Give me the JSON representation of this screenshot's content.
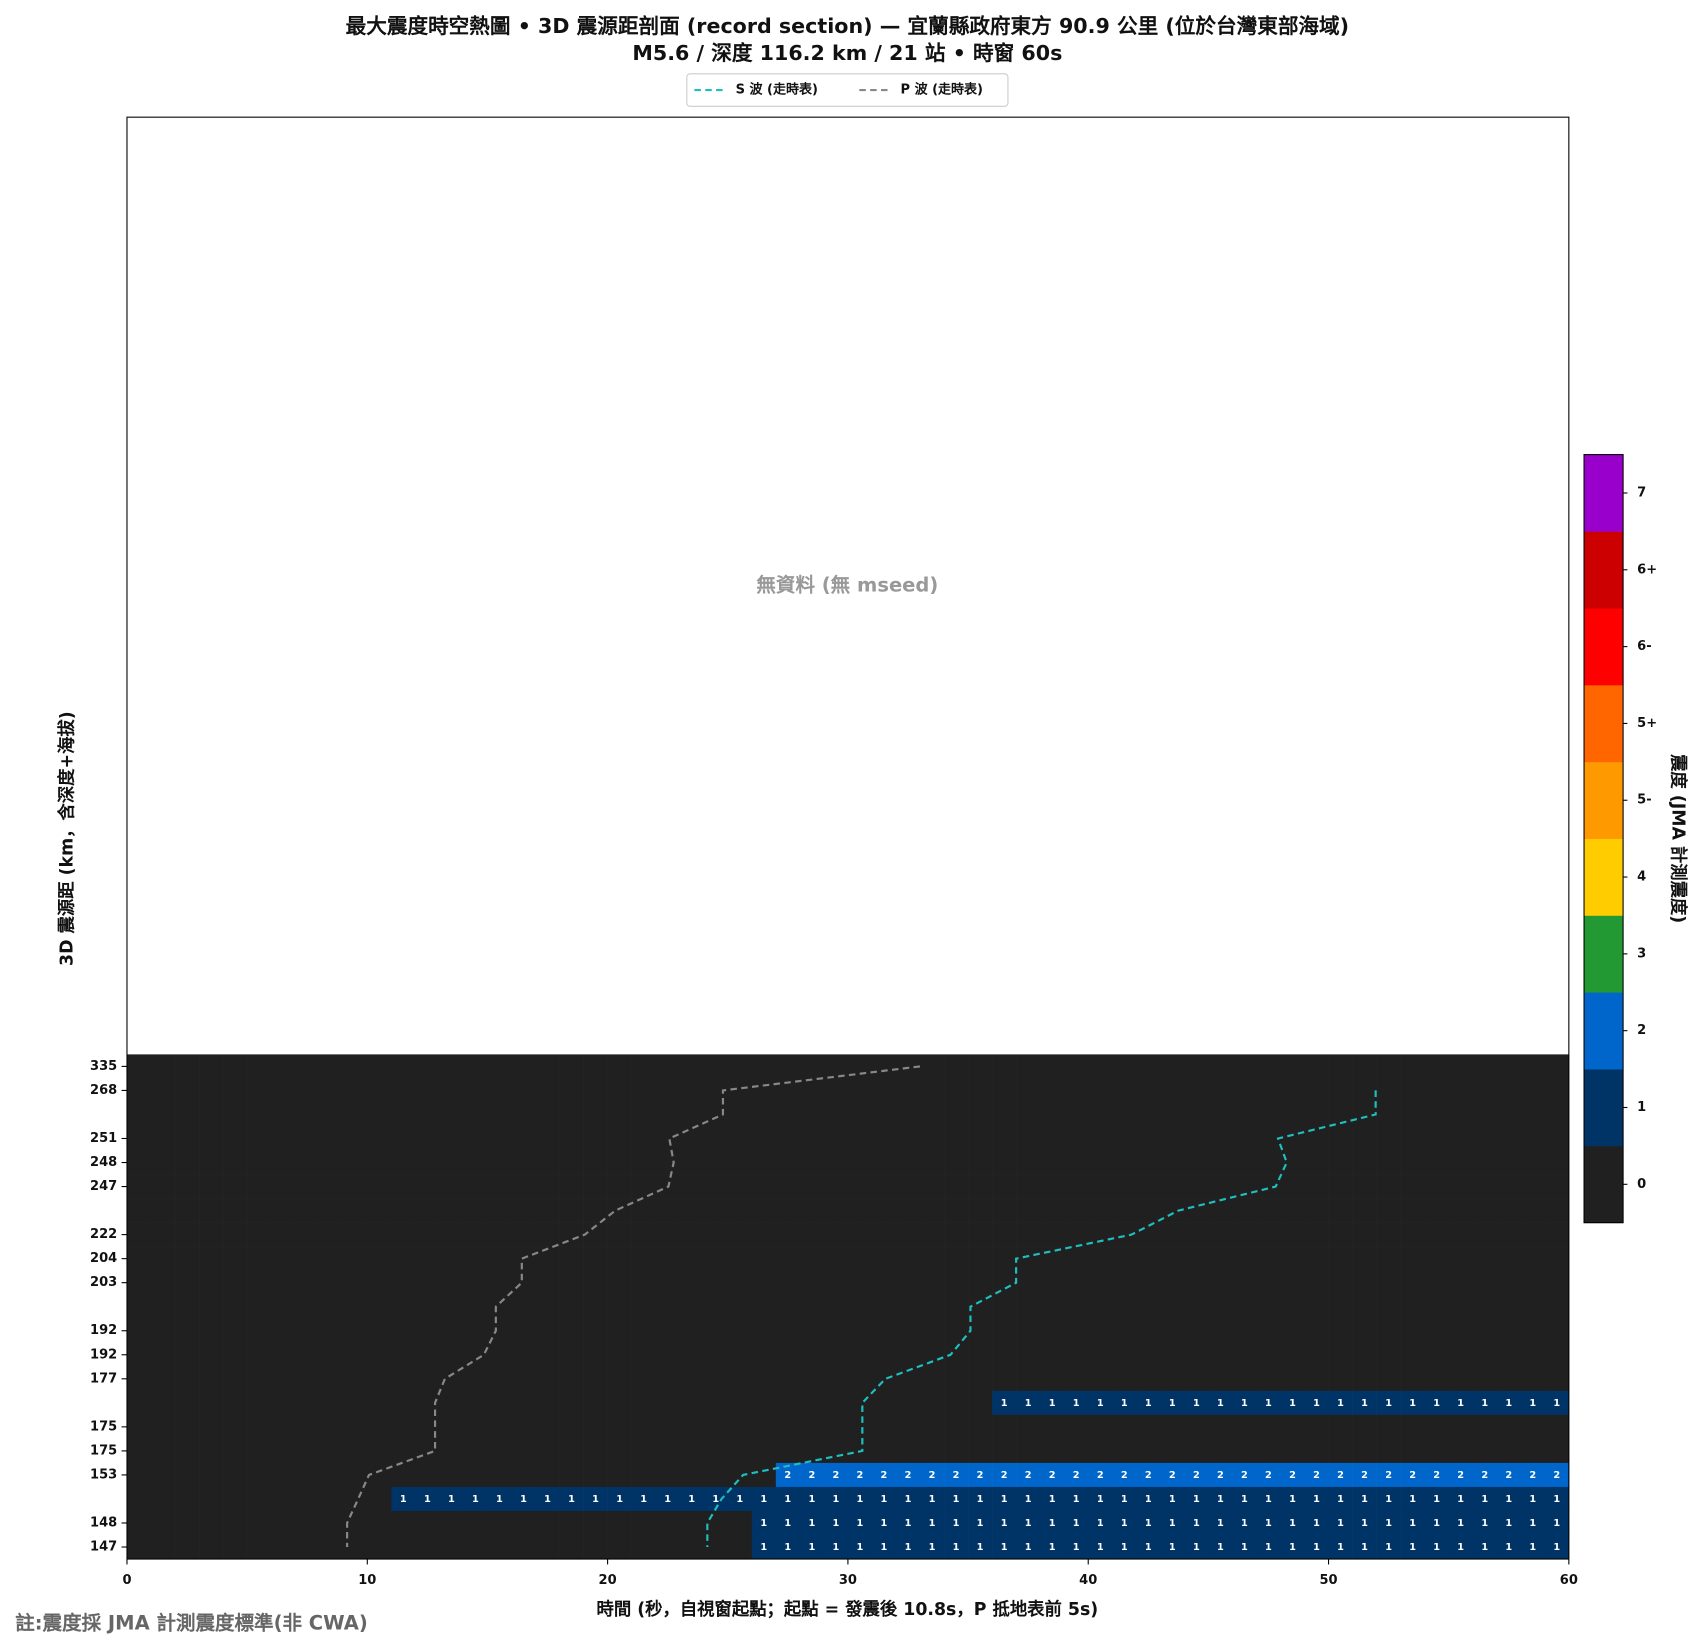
{
  "chart_data": {
    "type": "heatmap",
    "title": "最大震度時空熱圖 • 3D 震源距剖面 (record section) — 宜蘭縣政府東方  90.9  公里 (位於台灣東部海域)",
    "subtitle": "M5.6 / 深度 116.2 km / 21 站 • 時窗 60s",
    "x_label": "時間 (秒，自視窗起點；起點 = 發震後 10.8s，P 抵地表前 5s)",
    "y_label": "3D 震源距 (km，含深度+海拔)",
    "annotation": "無資料 (無 mseed)",
    "footnote": "註:震度採 JMA 計測震度標準(非 CWA)",
    "xlim": [
      0,
      60
    ],
    "xticks": [
      0,
      10,
      20,
      30,
      40,
      50,
      60
    ],
    "categories": [
      "335",
      "268",
      null,
      "251",
      "248",
      "247",
      null,
      "222",
      "204",
      "203",
      null,
      "192",
      "192",
      "177",
      null,
      "175",
      "175",
      "153",
      null,
      "148",
      "147"
    ],
    "time_bins": [
      0,
      1,
      2,
      3,
      4,
      5,
      6,
      7,
      8,
      9,
      10,
      11,
      12,
      13,
      14,
      15,
      16,
      17,
      18,
      19,
      20,
      21,
      22,
      23,
      24,
      25,
      26,
      27,
      28,
      29,
      30,
      31,
      32,
      33,
      34,
      35,
      36,
      37,
      38,
      39,
      40,
      41,
      42,
      43,
      44,
      45,
      46,
      47,
      48,
      49,
      50,
      51,
      52,
      53,
      54,
      55,
      56,
      57,
      58,
      59,
      60
    ],
    "values": [
      [
        0,
        0,
        0,
        0,
        0,
        0,
        0,
        0,
        0,
        0,
        0,
        0,
        0,
        0,
        0,
        0,
        0,
        0,
        0,
        0,
        0,
        0,
        0,
        0,
        0,
        0,
        0,
        0,
        0,
        0,
        0,
        0,
        0,
        0,
        0,
        0,
        0,
        0,
        0,
        0,
        0,
        0,
        0,
        0,
        0,
        0,
        0,
        0,
        0,
        0,
        0,
        0,
        0,
        0,
        0,
        0,
        0,
        0,
        0,
        0
      ],
      [
        0,
        0,
        0,
        0,
        0,
        0,
        0,
        0,
        0,
        0,
        0,
        0,
        0,
        0,
        0,
        0,
        0,
        0,
        0,
        0,
        0,
        0,
        0,
        0,
        0,
        0,
        0,
        0,
        0,
        0,
        0,
        0,
        0,
        0,
        0,
        0,
        0,
        0,
        0,
        0,
        0,
        0,
        0,
        0,
        0,
        0,
        0,
        0,
        0,
        0,
        0,
        0,
        0,
        0,
        0,
        0,
        0,
        0,
        0,
        0
      ],
      [
        0,
        0,
        0,
        0,
        0,
        0,
        0,
        0,
        0,
        0,
        0,
        0,
        0,
        0,
        0,
        0,
        0,
        0,
        0,
        0,
        0,
        0,
        0,
        0,
        0,
        0,
        0,
        0,
        0,
        0,
        0,
        0,
        0,
        0,
        0,
        0,
        0,
        0,
        0,
        0,
        0,
        0,
        0,
        0,
        0,
        0,
        0,
        0,
        0,
        0,
        0,
        0,
        0,
        0,
        0,
        0,
        0,
        0,
        0,
        0
      ],
      [
        0,
        0,
        0,
        0,
        0,
        0,
        0,
        0,
        0,
        0,
        0,
        0,
        0,
        0,
        0,
        0,
        0,
        0,
        0,
        0,
        0,
        0,
        0,
        0,
        0,
        0,
        0,
        0,
        0,
        0,
        0,
        0,
        0,
        0,
        0,
        0,
        0,
        0,
        0,
        0,
        0,
        0,
        0,
        0,
        0,
        0,
        0,
        0,
        0,
        0,
        0,
        0,
        0,
        0,
        0,
        0,
        0,
        0,
        0,
        0
      ],
      [
        0,
        0,
        0,
        0,
        0,
        0,
        0,
        0,
        0,
        0,
        0,
        0,
        0,
        0,
        0,
        0,
        0,
        0,
        0,
        0,
        0,
        0,
        0,
        0,
        0,
        0,
        0,
        0,
        0,
        0,
        0,
        0,
        0,
        0,
        0,
        0,
        0,
        0,
        0,
        0,
        0,
        0,
        0,
        0,
        0,
        0,
        0,
        0,
        0,
        0,
        0,
        0,
        0,
        0,
        0,
        0,
        0,
        0,
        0,
        0
      ],
      [
        0,
        0,
        0,
        0,
        0,
        0,
        0,
        0,
        0,
        0,
        0,
        0,
        0,
        0,
        0,
        0,
        0,
        0,
        0,
        0,
        0,
        0,
        0,
        0,
        0,
        0,
        0,
        0,
        0,
        0,
        0,
        0,
        0,
        0,
        0,
        0,
        0,
        0,
        0,
        0,
        0,
        0,
        0,
        0,
        0,
        0,
        0,
        0,
        0,
        0,
        0,
        0,
        0,
        0,
        0,
        0,
        0,
        0,
        0,
        0
      ],
      [
        0,
        0,
        0,
        0,
        0,
        0,
        0,
        0,
        0,
        0,
        0,
        0,
        0,
        0,
        0,
        0,
        0,
        0,
        0,
        0,
        0,
        0,
        0,
        0,
        0,
        0,
        0,
        0,
        0,
        0,
        0,
        0,
        0,
        0,
        0,
        0,
        0,
        0,
        0,
        0,
        0,
        0,
        0,
        0,
        0,
        0,
        0,
        0,
        0,
        0,
        0,
        0,
        0,
        0,
        0,
        0,
        0,
        0,
        0,
        0
      ],
      [
        0,
        0,
        0,
        0,
        0,
        0,
        0,
        0,
        0,
        0,
        0,
        0,
        0,
        0,
        0,
        0,
        0,
        0,
        0,
        0,
        0,
        0,
        0,
        0,
        0,
        0,
        0,
        0,
        0,
        0,
        0,
        0,
        0,
        0,
        0,
        0,
        0,
        0,
        0,
        0,
        0,
        0,
        0,
        0,
        0,
        0,
        0,
        0,
        0,
        0,
        0,
        0,
        0,
        0,
        0,
        0,
        0,
        0,
        0,
        0
      ],
      [
        0,
        0,
        0,
        0,
        0,
        0,
        0,
        0,
        0,
        0,
        0,
        0,
        0,
        0,
        0,
        0,
        0,
        0,
        0,
        0,
        0,
        0,
        0,
        0,
        0,
        0,
        0,
        0,
        0,
        0,
        0,
        0,
        0,
        0,
        0,
        0,
        0,
        0,
        0,
        0,
        0,
        0,
        0,
        0,
        0,
        0,
        0,
        0,
        0,
        0,
        0,
        0,
        0,
        0,
        0,
        0,
        0,
        0,
        0,
        0
      ],
      [
        0,
        0,
        0,
        0,
        0,
        0,
        0,
        0,
        0,
        0,
        0,
        0,
        0,
        0,
        0,
        0,
        0,
        0,
        0,
        0,
        0,
        0,
        0,
        0,
        0,
        0,
        0,
        0,
        0,
        0,
        0,
        0,
        0,
        0,
        0,
        0,
        0,
        0,
        0,
        0,
        0,
        0,
        0,
        0,
        0,
        0,
        0,
        0,
        0,
        0,
        0,
        0,
        0,
        0,
        0,
        0,
        0,
        0,
        0,
        0
      ],
      [
        0,
        0,
        0,
        0,
        0,
        0,
        0,
        0,
        0,
        0,
        0,
        0,
        0,
        0,
        0,
        0,
        0,
        0,
        0,
        0,
        0,
        0,
        0,
        0,
        0,
        0,
        0,
        0,
        0,
        0,
        0,
        0,
        0,
        0,
        0,
        0,
        0,
        0,
        0,
        0,
        0,
        0,
        0,
        0,
        0,
        0,
        0,
        0,
        0,
        0,
        0,
        0,
        0,
        0,
        0,
        0,
        0,
        0,
        0,
        0
      ],
      [
        0,
        0,
        0,
        0,
        0,
        0,
        0,
        0,
        0,
        0,
        0,
        0,
        0,
        0,
        0,
        0,
        0,
        0,
        0,
        0,
        0,
        0,
        0,
        0,
        0,
        0,
        0,
        0,
        0,
        0,
        0,
        0,
        0,
        0,
        0,
        0,
        0,
        0,
        0,
        0,
        0,
        0,
        0,
        0,
        0,
        0,
        0,
        0,
        0,
        0,
        0,
        0,
        0,
        0,
        0,
        0,
        0,
        0,
        0,
        0
      ],
      [
        0,
        0,
        0,
        0,
        0,
        0,
        0,
        0,
        0,
        0,
        0,
        0,
        0,
        0,
        0,
        0,
        0,
        0,
        0,
        0,
        0,
        0,
        0,
        0,
        0,
        0,
        0,
        0,
        0,
        0,
        0,
        0,
        0,
        0,
        0,
        0,
        0,
        0,
        0,
        0,
        0,
        0,
        0,
        0,
        0,
        0,
        0,
        0,
        0,
        0,
        0,
        0,
        0,
        0,
        0,
        0,
        0,
        0,
        0,
        0
      ],
      [
        0,
        0,
        0,
        0,
        0,
        0,
        0,
        0,
        0,
        0,
        0,
        0,
        0,
        0,
        0,
        0,
        0,
        0,
        0,
        0,
        0,
        0,
        0,
        0,
        0,
        0,
        0,
        0,
        0,
        0,
        0,
        0,
        0,
        0,
        0,
        0,
        0,
        0,
        0,
        0,
        0,
        0,
        0,
        0,
        0,
        0,
        0,
        0,
        0,
        0,
        0,
        0,
        0,
        0,
        0,
        0,
        0,
        0,
        0,
        0
      ],
      [
        0,
        0,
        0,
        0,
        0,
        0,
        0,
        0,
        0,
        0,
        0,
        0,
        0,
        0,
        0,
        0,
        0,
        0,
        0,
        0,
        0,
        0,
        0,
        0,
        0,
        0,
        0,
        0,
        0,
        0,
        0,
        0,
        0,
        0,
        0,
        0,
        1,
        1,
        1,
        1,
        1,
        1,
        1,
        1,
        1,
        1,
        1,
        1,
        1,
        1,
        1,
        1,
        1,
        1,
        1,
        1,
        1,
        1,
        1,
        1
      ],
      [
        0,
        0,
        0,
        0,
        0,
        0,
        0,
        0,
        0,
        0,
        0,
        0,
        0,
        0,
        0,
        0,
        0,
        0,
        0,
        0,
        0,
        0,
        0,
        0,
        0,
        0,
        0,
        0,
        0,
        0,
        0,
        0,
        0,
        0,
        0,
        0,
        0,
        0,
        0,
        0,
        0,
        0,
        0,
        0,
        0,
        0,
        0,
        0,
        0,
        0,
        0,
        0,
        0,
        0,
        0,
        0,
        0,
        0,
        0,
        0
      ],
      [
        0,
        0,
        0,
        0,
        0,
        0,
        0,
        0,
        0,
        0,
        0,
        0,
        0,
        0,
        0,
        0,
        0,
        0,
        0,
        0,
        0,
        0,
        0,
        0,
        0,
        0,
        0,
        0,
        0,
        0,
        0,
        0,
        0,
        0,
        0,
        0,
        0,
        0,
        0,
        0,
        0,
        0,
        0,
        0,
        0,
        0,
        0,
        0,
        0,
        0,
        0,
        0,
        0,
        0,
        0,
        0,
        0,
        0,
        0,
        0
      ],
      [
        0,
        0,
        0,
        0,
        0,
        0,
        0,
        0,
        0,
        0,
        0,
        0,
        0,
        0,
        0,
        0,
        0,
        0,
        0,
        0,
        0,
        0,
        0,
        0,
        0,
        0,
        0,
        2,
        2,
        2,
        2,
        2,
        2,
        2,
        2,
        2,
        2,
        2,
        2,
        2,
        2,
        2,
        2,
        2,
        2,
        2,
        2,
        2,
        2,
        2,
        2,
        2,
        2,
        2,
        2,
        2,
        2,
        2,
        2,
        2
      ],
      [
        0,
        0,
        0,
        0,
        0,
        0,
        0,
        0,
        0,
        0,
        0,
        1,
        1,
        1,
        1,
        1,
        1,
        1,
        1,
        1,
        1,
        1,
        1,
        1,
        1,
        1,
        1,
        1,
        1,
        1,
        1,
        1,
        1,
        1,
        1,
        1,
        1,
        1,
        1,
        1,
        1,
        1,
        1,
        1,
        1,
        1,
        1,
        1,
        1,
        1,
        1,
        1,
        1,
        1,
        1,
        1,
        1,
        1,
        1,
        1
      ],
      [
        0,
        0,
        0,
        0,
        0,
        0,
        0,
        0,
        0,
        0,
        0,
        0,
        0,
        0,
        0,
        0,
        0,
        0,
        0,
        0,
        0,
        0,
        0,
        0,
        0,
        0,
        1,
        1,
        1,
        1,
        1,
        1,
        1,
        1,
        1,
        1,
        1,
        1,
        1,
        1,
        1,
        1,
        1,
        1,
        1,
        1,
        1,
        1,
        1,
        1,
        1,
        1,
        1,
        1,
        1,
        1,
        1,
        1,
        1,
        1
      ],
      [
        0,
        0,
        0,
        0,
        0,
        0,
        0,
        0,
        0,
        0,
        0,
        0,
        0,
        0,
        0,
        0,
        0,
        0,
        0,
        0,
        0,
        0,
        0,
        0,
        0,
        0,
        1,
        1,
        1,
        1,
        1,
        1,
        1,
        1,
        1,
        1,
        1,
        1,
        1,
        1,
        1,
        1,
        1,
        1,
        1,
        1,
        1,
        1,
        1,
        1,
        1,
        1,
        1,
        1,
        1,
        1,
        1,
        1,
        1,
        1
      ]
    ],
    "series": [
      {
        "name": "S 波 (走時表)",
        "color": "#1fbfbf",
        "values": [
          null,
          51.96,
          51.96,
          47.9,
          48.26,
          47.8,
          43.75,
          41.8,
          37.0,
          37.0,
          35.1,
          35.1,
          34.27,
          31.56,
          30.6,
          30.6,
          30.6,
          25.64,
          24.74,
          24.15,
          24.15
        ]
      },
      {
        "name": "P 波 (走時表)",
        "color": "#888888",
        "values": [
          33.0,
          24.8,
          24.8,
          22.57,
          22.75,
          22.53,
          20.32,
          19.05,
          16.43,
          16.43,
          15.35,
          15.35,
          14.85,
          13.23,
          12.82,
          12.82,
          12.82,
          10.07,
          9.62,
          9.16,
          9.16
        ]
      }
    ],
    "colorbar": {
      "label": "震度 (JMA 計測震度)",
      "levels": [
        "0",
        "1",
        "2",
        "3",
        "4",
        "5-",
        "5+",
        "6-",
        "6+",
        "7"
      ],
      "colors": [
        "#202020",
        "#003366",
        "#0066cc",
        "#229933",
        "#ffcc00",
        "#ff9900",
        "#ff6600",
        "#ff0000",
        "#cc0000",
        "#9900cc"
      ]
    }
  }
}
